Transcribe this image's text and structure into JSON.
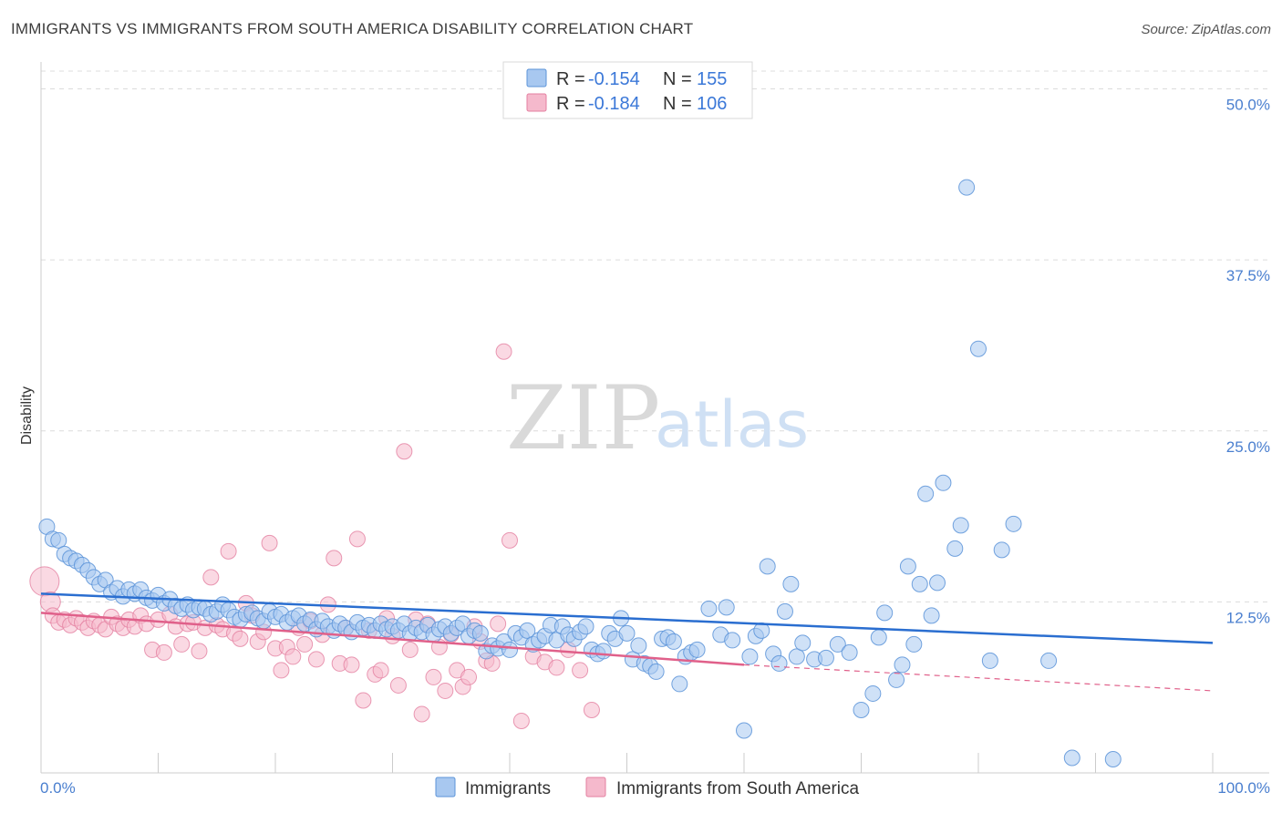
{
  "title": "IMMIGRANTS VS IMMIGRANTS FROM SOUTH AMERICA DISABILITY CORRELATION CHART",
  "source": "Source: ZipAtlas.com",
  "watermark": {
    "zip": "ZIP",
    "atlas": "atlas"
  },
  "legend_top": [
    {
      "r_label": "R =",
      "r_value": "-0.154",
      "n_label": "N =",
      "n_value": "155"
    },
    {
      "r_label": "R =",
      "r_value": "-0.184",
      "n_label": "N =",
      "n_value": "106"
    }
  ],
  "colors": {
    "blue_fill": "#a8c8f0",
    "blue_stroke": "#5b93d8",
    "blue_line": "#2a6ed0",
    "pink_fill": "#f5b9cc",
    "pink_stroke": "#e47fa0",
    "pink_line": "#e0608a",
    "grid": "#dcdcdc",
    "tick_text": "#4a7fcf"
  },
  "chart_data": {
    "type": "scatter",
    "title": "IMMIGRANTS VS IMMIGRANTS FROM SOUTH AMERICA DISABILITY CORRELATION CHART",
    "xlabel": "",
    "ylabel": "Disability",
    "xlim": [
      0,
      100
    ],
    "ylim": [
      0,
      51.5
    ],
    "x_ticks": [
      "0.0%",
      "100.0%"
    ],
    "y_ticks": [
      {
        "value": 12.5,
        "label": "12.5%"
      },
      {
        "value": 25.0,
        "label": "25.0%"
      },
      {
        "value": 37.5,
        "label": "37.5%"
      },
      {
        "value": 50.0,
        "label": "50.0%"
      }
    ],
    "grid": true,
    "legend_position": "bottom",
    "series": [
      {
        "name": "Immigrants",
        "color": "#a8c8f0",
        "trend": {
          "x": [
            0,
            100
          ],
          "y": [
            13.1,
            9.5
          ],
          "style": "solid"
        },
        "points": [
          [
            0.5,
            18.0
          ],
          [
            1.0,
            17.1
          ],
          [
            1.5,
            17.0
          ],
          [
            2.0,
            16.0
          ],
          [
            2.5,
            15.7
          ],
          [
            3.0,
            15.5
          ],
          [
            3.5,
            15.2
          ],
          [
            4.0,
            14.8
          ],
          [
            4.5,
            14.3
          ],
          [
            5.0,
            13.8
          ],
          [
            5.5,
            14.1
          ],
          [
            6.0,
            13.2
          ],
          [
            6.5,
            13.5
          ],
          [
            7.0,
            12.9
          ],
          [
            7.5,
            13.4
          ],
          [
            8.0,
            13.1
          ],
          [
            8.5,
            13.4
          ],
          [
            9.0,
            12.8
          ],
          [
            9.5,
            12.6
          ],
          [
            10.0,
            13.0
          ],
          [
            10.5,
            12.4
          ],
          [
            11.0,
            12.7
          ],
          [
            11.5,
            12.2
          ],
          [
            12.0,
            12.0
          ],
          [
            12.5,
            12.3
          ],
          [
            13.0,
            11.9
          ],
          [
            13.5,
            12.1
          ],
          [
            14.0,
            12.0
          ],
          [
            14.5,
            11.6
          ],
          [
            15.0,
            11.8
          ],
          [
            15.5,
            12.3
          ],
          [
            16.0,
            11.9
          ],
          [
            16.5,
            11.4
          ],
          [
            17.0,
            11.2
          ],
          [
            17.5,
            11.6
          ],
          [
            18.0,
            11.7
          ],
          [
            18.5,
            11.3
          ],
          [
            19.0,
            11.1
          ],
          [
            19.5,
            11.8
          ],
          [
            20.0,
            11.4
          ],
          [
            20.5,
            11.6
          ],
          [
            21.0,
            11.0
          ],
          [
            21.5,
            11.3
          ],
          [
            22.0,
            11.5
          ],
          [
            22.5,
            10.9
          ],
          [
            23.0,
            11.2
          ],
          [
            23.5,
            10.5
          ],
          [
            24.0,
            11.1
          ],
          [
            24.5,
            10.7
          ],
          [
            25.0,
            10.4
          ],
          [
            25.5,
            10.9
          ],
          [
            26.0,
            10.6
          ],
          [
            26.5,
            10.3
          ],
          [
            27.0,
            11.0
          ],
          [
            27.5,
            10.6
          ],
          [
            28.0,
            10.8
          ],
          [
            28.5,
            10.4
          ],
          [
            29.0,
            10.9
          ],
          [
            29.5,
            10.5
          ],
          [
            30.0,
            10.7
          ],
          [
            30.5,
            10.4
          ],
          [
            31.0,
            10.9
          ],
          [
            31.5,
            10.2
          ],
          [
            32.0,
            10.6
          ],
          [
            32.5,
            10.3
          ],
          [
            33.0,
            10.8
          ],
          [
            33.5,
            10.1
          ],
          [
            34.0,
            10.5
          ],
          [
            34.5,
            10.7
          ],
          [
            35.0,
            10.2
          ],
          [
            35.5,
            10.6
          ],
          [
            36.0,
            10.9
          ],
          [
            36.5,
            10.0
          ],
          [
            37.0,
            10.4
          ],
          [
            37.5,
            10.2
          ],
          [
            38.0,
            8.9
          ],
          [
            38.5,
            9.3
          ],
          [
            39.0,
            9.1
          ],
          [
            39.5,
            9.6
          ],
          [
            40.0,
            9.0
          ],
          [
            40.5,
            10.2
          ],
          [
            41.0,
            9.9
          ],
          [
            41.5,
            10.4
          ],
          [
            42.0,
            9.4
          ],
          [
            42.5,
            9.7
          ],
          [
            43.0,
            10.0
          ],
          [
            43.5,
            10.8
          ],
          [
            44.0,
            9.7
          ],
          [
            44.5,
            10.7
          ],
          [
            45.0,
            10.1
          ],
          [
            45.5,
            9.8
          ],
          [
            46.0,
            10.3
          ],
          [
            46.5,
            10.7
          ],
          [
            47.0,
            9.0
          ],
          [
            47.5,
            8.7
          ],
          [
            48.0,
            8.9
          ],
          [
            48.5,
            10.2
          ],
          [
            49.0,
            9.8
          ],
          [
            49.5,
            11.3
          ],
          [
            50.0,
            10.2
          ],
          [
            50.5,
            8.3
          ],
          [
            51.0,
            9.3
          ],
          [
            51.5,
            8.0
          ],
          [
            52.0,
            7.8
          ],
          [
            52.5,
            7.4
          ],
          [
            53.0,
            9.8
          ],
          [
            53.5,
            9.9
          ],
          [
            54.0,
            9.6
          ],
          [
            54.5,
            6.5
          ],
          [
            55.0,
            8.5
          ],
          [
            55.5,
            8.8
          ],
          [
            56.0,
            9.0
          ],
          [
            57.0,
            12.0
          ],
          [
            58.0,
            10.1
          ],
          [
            58.5,
            12.1
          ],
          [
            59.0,
            9.7
          ],
          [
            60.0,
            3.1
          ],
          [
            60.5,
            8.5
          ],
          [
            61.0,
            10.0
          ],
          [
            61.5,
            10.4
          ],
          [
            62.0,
            15.1
          ],
          [
            62.5,
            8.7
          ],
          [
            63.0,
            8.0
          ],
          [
            63.5,
            11.8
          ],
          [
            64.0,
            13.8
          ],
          [
            64.5,
            8.5
          ],
          [
            65.0,
            9.5
          ],
          [
            66.0,
            8.3
          ],
          [
            67.0,
            8.4
          ],
          [
            68.0,
            9.4
          ],
          [
            69.0,
            8.8
          ],
          [
            70.0,
            4.6
          ],
          [
            71.0,
            5.8
          ],
          [
            71.5,
            9.9
          ],
          [
            72.0,
            11.7
          ],
          [
            73.0,
            6.8
          ],
          [
            73.5,
            7.9
          ],
          [
            74.0,
            15.1
          ],
          [
            74.5,
            9.4
          ],
          [
            75.0,
            13.8
          ],
          [
            75.5,
            20.4
          ],
          [
            76.0,
            11.5
          ],
          [
            76.5,
            13.9
          ],
          [
            77.0,
            21.2
          ],
          [
            78.0,
            16.4
          ],
          [
            78.5,
            18.1
          ],
          [
            79.0,
            42.8
          ],
          [
            80.0,
            31.0
          ],
          [
            81.0,
            8.2
          ],
          [
            82.0,
            16.3
          ],
          [
            83.0,
            18.2
          ],
          [
            86.0,
            8.2
          ],
          [
            88.0,
            1.1
          ],
          [
            91.5,
            1.0
          ]
        ]
      },
      {
        "name": "Immigrants from South America",
        "color": "#f5b9cc",
        "trend": {
          "x": [
            0,
            60
          ],
          "y": [
            11.7,
            7.9
          ],
          "style": "solid",
          "dashed_to": [
            100,
            6.0
          ]
        },
        "points": [
          [
            0.3,
            14.0
          ],
          [
            0.8,
            12.5
          ],
          [
            1.0,
            11.5
          ],
          [
            1.5,
            11.0
          ],
          [
            2.0,
            11.2
          ],
          [
            2.5,
            10.8
          ],
          [
            3.0,
            11.3
          ],
          [
            3.5,
            11.0
          ],
          [
            4.0,
            10.6
          ],
          [
            4.5,
            11.1
          ],
          [
            5.0,
            10.8
          ],
          [
            5.5,
            10.5
          ],
          [
            6.0,
            11.4
          ],
          [
            6.5,
            10.9
          ],
          [
            7.0,
            10.6
          ],
          [
            7.5,
            11.2
          ],
          [
            8.0,
            10.7
          ],
          [
            8.5,
            11.5
          ],
          [
            9.0,
            10.9
          ],
          [
            9.5,
            9.0
          ],
          [
            10.0,
            11.2
          ],
          [
            10.5,
            8.8
          ],
          [
            11.0,
            11.6
          ],
          [
            11.5,
            10.7
          ],
          [
            12.0,
            9.4
          ],
          [
            12.5,
            10.9
          ],
          [
            13.0,
            11.0
          ],
          [
            13.5,
            8.9
          ],
          [
            14.0,
            10.6
          ],
          [
            14.5,
            14.3
          ],
          [
            15.0,
            10.8
          ],
          [
            15.5,
            10.5
          ],
          [
            16.0,
            16.2
          ],
          [
            16.5,
            10.2
          ],
          [
            17.0,
            9.8
          ],
          [
            17.5,
            12.4
          ],
          [
            18.0,
            11.5
          ],
          [
            18.5,
            9.6
          ],
          [
            19.0,
            10.3
          ],
          [
            19.5,
            16.8
          ],
          [
            20.0,
            9.1
          ],
          [
            20.5,
            7.5
          ],
          [
            21.0,
            9.2
          ],
          [
            21.5,
            8.5
          ],
          [
            22.0,
            10.6
          ],
          [
            22.5,
            9.4
          ],
          [
            23.0,
            11.1
          ],
          [
            23.5,
            8.3
          ],
          [
            24.0,
            10.1
          ],
          [
            24.5,
            12.3
          ],
          [
            25.0,
            15.7
          ],
          [
            25.5,
            8.0
          ],
          [
            26.0,
            10.6
          ],
          [
            26.5,
            7.9
          ],
          [
            27.0,
            17.1
          ],
          [
            27.5,
            5.3
          ],
          [
            28.0,
            10.4
          ],
          [
            28.5,
            7.2
          ],
          [
            29.0,
            7.5
          ],
          [
            29.5,
            11.3
          ],
          [
            30.0,
            10.0
          ],
          [
            30.5,
            6.4
          ],
          [
            31.0,
            23.5
          ],
          [
            31.5,
            9.0
          ],
          [
            32.0,
            11.2
          ],
          [
            32.5,
            4.3
          ],
          [
            33.0,
            10.9
          ],
          [
            33.5,
            7.0
          ],
          [
            34.0,
            9.2
          ],
          [
            34.5,
            6.0
          ],
          [
            35.0,
            10.1
          ],
          [
            35.5,
            7.5
          ],
          [
            36.0,
            6.3
          ],
          [
            36.5,
            7.0
          ],
          [
            37.0,
            10.7
          ],
          [
            37.5,
            9.6
          ],
          [
            38.0,
            8.2
          ],
          [
            38.5,
            8.0
          ],
          [
            39.0,
            10.9
          ],
          [
            39.5,
            30.8
          ],
          [
            40.0,
            17.0
          ],
          [
            41.0,
            3.8
          ],
          [
            42.0,
            8.5
          ],
          [
            43.0,
            8.1
          ],
          [
            44.0,
            7.7
          ],
          [
            45.0,
            9.0
          ],
          [
            46.0,
            7.5
          ],
          [
            47.0,
            4.6
          ]
        ]
      }
    ]
  },
  "bottom_legend": [
    "Immigrants",
    "Immigrants from South America"
  ]
}
